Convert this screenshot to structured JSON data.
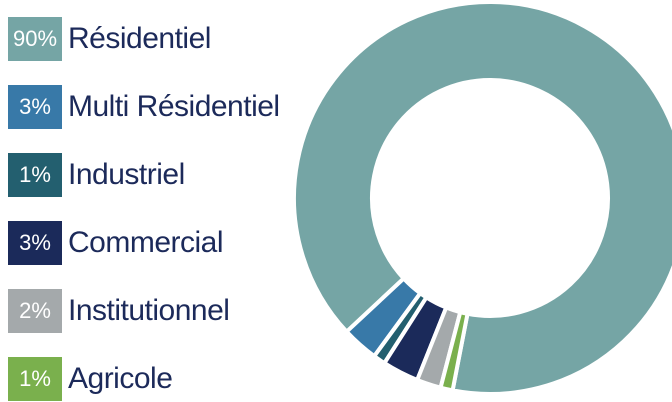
{
  "chart_data": {
    "type": "pie",
    "variant": "donut",
    "categories": [
      "Résidentiel",
      "Multi Résidentiel",
      "Industriel",
      "Commercial",
      "Institutionnel",
      "Agricole"
    ],
    "values": [
      90,
      3,
      1,
      3,
      2,
      1
    ],
    "value_labels": [
      "90%",
      "3%",
      "1%",
      "3%",
      "2%",
      "1%"
    ],
    "colors": [
      "#75a5a5",
      "#3879a8",
      "#235f6f",
      "#1b2a5a",
      "#a4a9ab",
      "#7ab04d"
    ],
    "legend_position": "left"
  }
}
